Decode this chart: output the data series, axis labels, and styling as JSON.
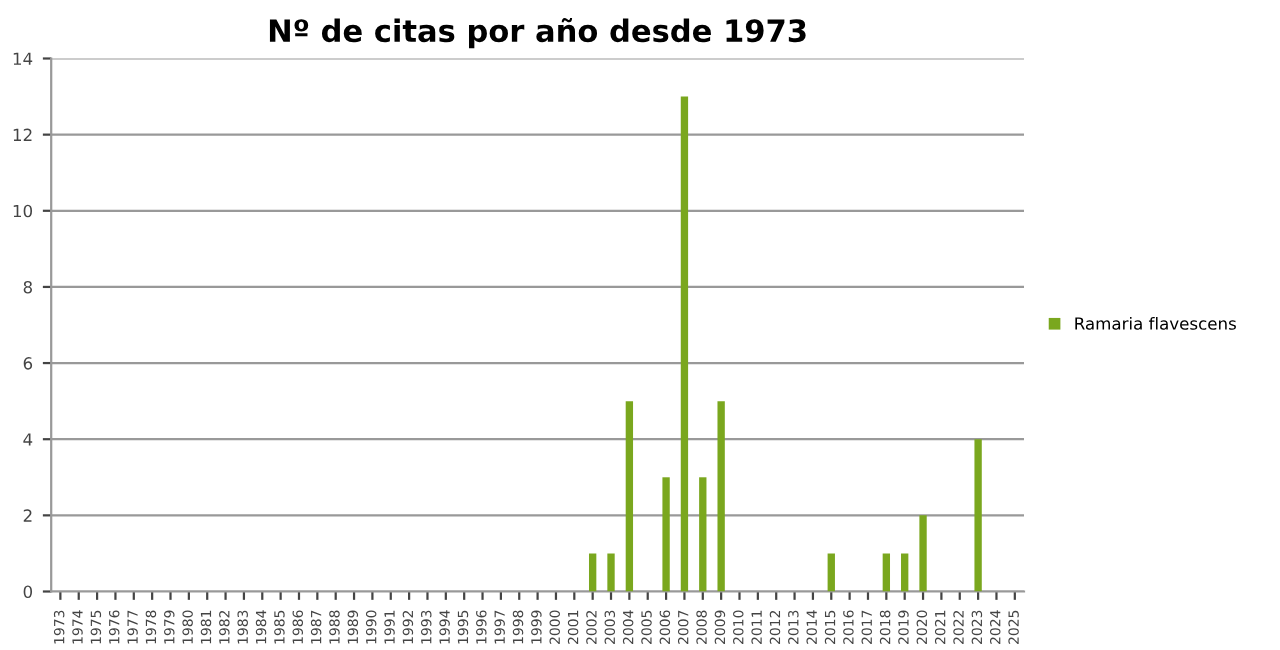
{
  "chart_data": {
    "type": "bar",
    "title": "Nº de citas por año desde 1973",
    "categories": [
      "1973",
      "1974",
      "1975",
      "1976",
      "1977",
      "1978",
      "1979",
      "1980",
      "1981",
      "1982",
      "1983",
      "1984",
      "1985",
      "1986",
      "1987",
      "1988",
      "1989",
      "1990",
      "1991",
      "1992",
      "1993",
      "1994",
      "1995",
      "1996",
      "1997",
      "1998",
      "1999",
      "2000",
      "2001",
      "2002",
      "2003",
      "2004",
      "2005",
      "2006",
      "2007",
      "2008",
      "2009",
      "2010",
      "2011",
      "2012",
      "2013",
      "2014",
      "2015",
      "2016",
      "2017",
      "2018",
      "2019",
      "2020",
      "2021",
      "2022",
      "2023",
      "2024",
      "2025"
    ],
    "series": [
      {
        "name": "Ramaria flavescens",
        "color": "#7aa71e",
        "values": [
          0,
          0,
          0,
          0,
          0,
          0,
          0,
          0,
          0,
          0,
          0,
          0,
          0,
          0,
          0,
          0,
          0,
          0,
          0,
          0,
          0,
          0,
          0,
          0,
          0,
          0,
          0,
          0,
          0,
          1,
          1,
          5,
          0,
          3,
          13,
          3,
          5,
          0,
          0,
          0,
          0,
          0,
          1,
          0,
          0,
          1,
          1,
          2,
          0,
          0,
          4,
          0,
          0
        ]
      }
    ],
    "ylim": [
      0,
      14
    ],
    "yticks": [
      0,
      2,
      4,
      6,
      8,
      10,
      12,
      14
    ],
    "grid": "y",
    "legend": "right"
  }
}
